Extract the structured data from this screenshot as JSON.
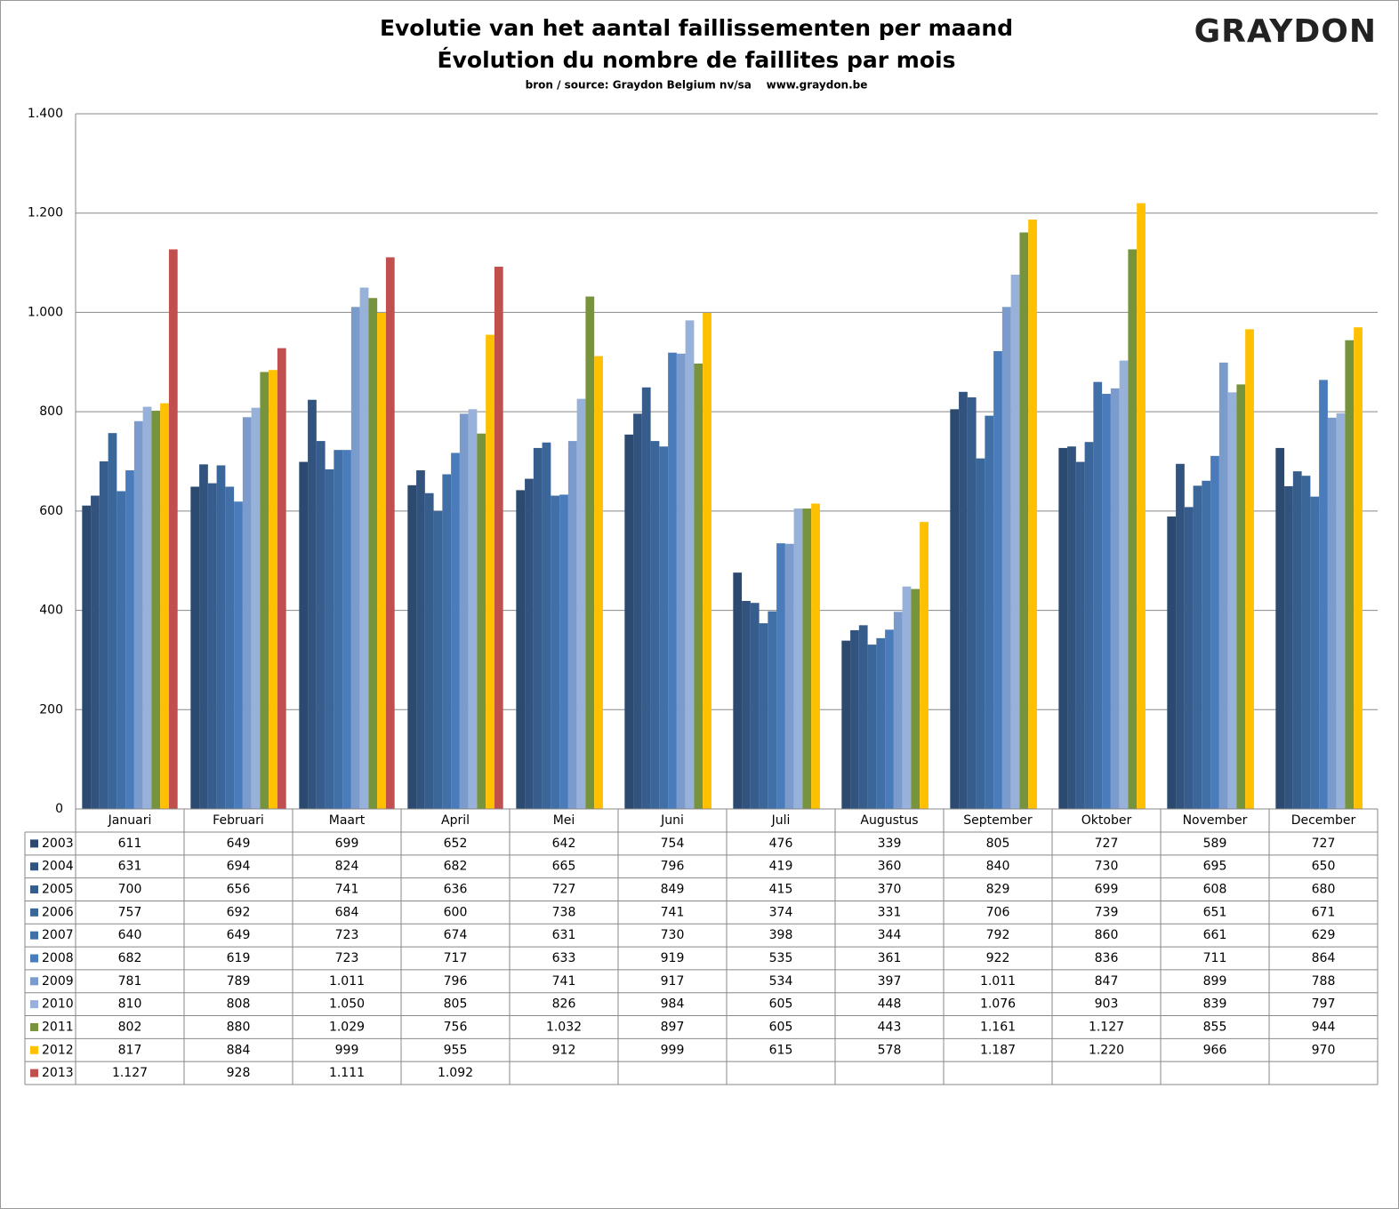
{
  "chart_data": {
    "type": "bar",
    "title": "Evolutie van het aantal faillissementen per maand",
    "subtitle": "Évolution du nombre de faillites par mois",
    "source": "bron / source: Graydon Belgium nv/sa    www.graydon.be",
    "logo": "GRAYDON",
    "categories": [
      "Januari",
      "Februari",
      "Maart",
      "April",
      "Mei",
      "Juni",
      "Juli",
      "Augustus",
      "September",
      "Oktober",
      "November",
      "December"
    ],
    "ylim": [
      0,
      1400
    ],
    "yticks": [
      0,
      200,
      400,
      600,
      800,
      {
        "value": 1000,
        "label": "1.000"
      },
      {
        "value": 1200,
        "label": "1.200"
      },
      {
        "value": 1400,
        "label": "1.400"
      }
    ],
    "grid": true,
    "series": [
      {
        "name": "2003",
        "color": "#2c4a6f",
        "values": [
          611,
          649,
          699,
          652,
          642,
          754,
          476,
          339,
          805,
          727,
          589,
          727
        ]
      },
      {
        "name": "2004",
        "color": "#31537d",
        "values": [
          631,
          694,
          824,
          682,
          665,
          796,
          419,
          360,
          840,
          730,
          695,
          650
        ]
      },
      {
        "name": "2005",
        "color": "#365d8b",
        "values": [
          700,
          656,
          741,
          636,
          727,
          849,
          415,
          370,
          829,
          699,
          608,
          680
        ]
      },
      {
        "name": "2006",
        "color": "#3b6699",
        "values": [
          757,
          692,
          684,
          600,
          738,
          741,
          374,
          331,
          706,
          739,
          651,
          671
        ]
      },
      {
        "name": "2007",
        "color": "#4170a8",
        "values": [
          640,
          649,
          723,
          674,
          631,
          730,
          398,
          344,
          792,
          860,
          661,
          629
        ]
      },
      {
        "name": "2008",
        "color": "#4a7bbb",
        "values": [
          682,
          619,
          723,
          717,
          633,
          919,
          535,
          361,
          922,
          836,
          711,
          864
        ]
      },
      {
        "name": "2009",
        "color": "#7b9bcc",
        "values": [
          781,
          789,
          1011,
          796,
          741,
          917,
          534,
          397,
          1011,
          847,
          899,
          788
        ],
        "value_labels": [
          "781",
          "789",
          "1.011",
          "796",
          "741",
          "917",
          "534",
          "397",
          "1.011",
          "847",
          "899",
          "788"
        ]
      },
      {
        "name": "2010",
        "color": "#98b1da",
        "values": [
          810,
          808,
          1050,
          805,
          826,
          984,
          605,
          448,
          1076,
          903,
          839,
          797
        ],
        "value_labels": [
          "810",
          "808",
          "1.050",
          "805",
          "826",
          "984",
          "605",
          "448",
          "1.076",
          "903",
          "839",
          "797"
        ]
      },
      {
        "name": "2011",
        "color": "#77933c",
        "values": [
          802,
          880,
          1029,
          756,
          1032,
          897,
          605,
          443,
          1161,
          1127,
          855,
          944
        ],
        "value_labels": [
          "802",
          "880",
          "1.029",
          "756",
          "1.032",
          "897",
          "605",
          "443",
          "1.161",
          "1.127",
          "855",
          "944"
        ]
      },
      {
        "name": "2012",
        "color": "#ffc000",
        "values": [
          817,
          884,
          999,
          955,
          912,
          999,
          615,
          578,
          1187,
          1220,
          966,
          970
        ],
        "value_labels": [
          "817",
          "884",
          "999",
          "955",
          "912",
          "999",
          "615",
          "578",
          "1.187",
          "1.220",
          "966",
          "970"
        ]
      },
      {
        "name": "2013",
        "color": "#c0504d",
        "values": [
          1127,
          928,
          1111,
          1092,
          null,
          null,
          null,
          null,
          null,
          null,
          null,
          null
        ],
        "value_labels": [
          "1.127",
          "928",
          "1.111",
          "1.092",
          null,
          null,
          null,
          null,
          null,
          null,
          null,
          null
        ]
      }
    ]
  }
}
